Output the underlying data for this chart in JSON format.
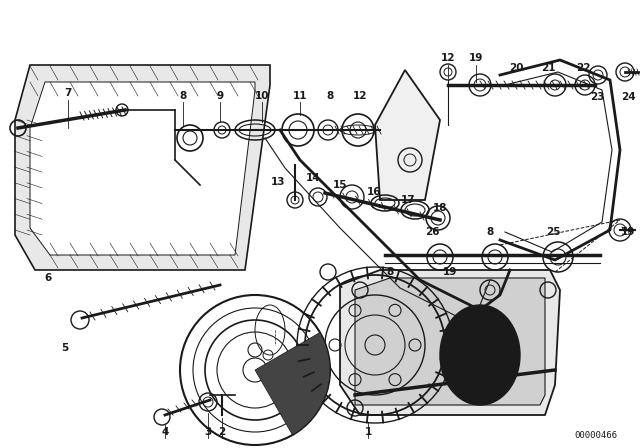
{
  "bg_color": "#ffffff",
  "line_color": "#1a1a1a",
  "diagram_code": "00000466",
  "figsize": [
    6.4,
    4.48
  ],
  "dpi": 100
}
